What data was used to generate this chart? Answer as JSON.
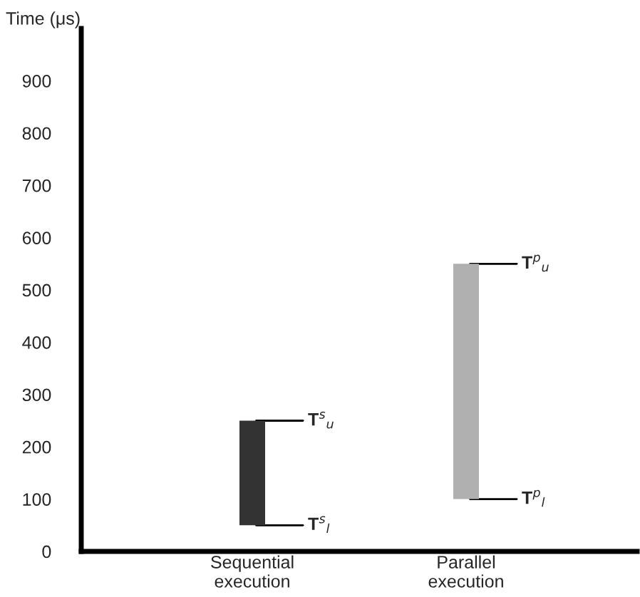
{
  "chart_data": {
    "type": "bar",
    "ylabel": "Time (μs)",
    "categories": [
      "Sequential\nexecution",
      "Parallel\nexecution"
    ],
    "base": [
      50,
      100
    ],
    "values": [
      200,
      450
    ],
    "colors": [
      "#333333",
      "#b0b0b0"
    ],
    "ylim": [
      0,
      1000
    ],
    "yticks": [
      0,
      100,
      200,
      300,
      400,
      500,
      600,
      700,
      800,
      900
    ],
    "grid": false,
    "annotations": [
      {
        "text": "T$^{s}$$_{u}$",
        "x": "Sequential\nexecution",
        "y": 250
      },
      {
        "text": "T$^{s}$$_{l}$",
        "x": "Sequential\nexecution",
        "y": 50
      },
      {
        "text": "T$^{p}$$_{u}$",
        "x": "Parallel\nexecution",
        "y": 550
      },
      {
        "text": "T$^{p}$$_{l}$",
        "x": "Parallel\nexecution",
        "y": 100
      }
    ]
  }
}
